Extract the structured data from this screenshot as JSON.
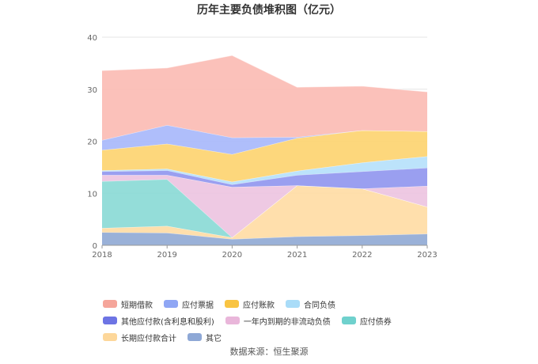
{
  "chart_data": {
    "type": "area",
    "stacked": true,
    "title": "历年主要负债堆积图（亿元）",
    "x": [
      "2018",
      "2019",
      "2020",
      "2021",
      "2022",
      "2023"
    ],
    "ylim": [
      0,
      40
    ],
    "yticks": [
      0,
      10,
      20,
      30,
      40
    ],
    "grid": true,
    "legend_position": "bottom",
    "series": [
      {
        "name": "其它",
        "color": "#8fa9d4",
        "values": [
          2.5,
          2.4,
          1.2,
          1.7,
          1.9,
          2.2
        ]
      },
      {
        "name": "长期应付款合计",
        "color": "#ffdca3",
        "values": [
          0.8,
          1.3,
          0.3,
          9.8,
          9.0,
          5.2
        ]
      },
      {
        "name": "应付债券",
        "color": "#88d9d5",
        "values": [
          9.0,
          9.0,
          0.0,
          0.0,
          0.0,
          0.0
        ]
      },
      {
        "name": "一年内到期的非流动负债",
        "color": "#ecc3e0",
        "values": [
          1.2,
          0.8,
          9.7,
          0.0,
          0.0,
          4.0
        ]
      },
      {
        "name": "其他应付款(含利息和股利)",
        "color": "#8f95ee",
        "values": [
          0.7,
          0.9,
          0.5,
          2.0,
          3.3,
          3.5
        ]
      },
      {
        "name": "合同负债",
        "color": "#b5e0fb",
        "values": [
          0.2,
          0.3,
          0.5,
          0.8,
          1.7,
          2.2
        ]
      },
      {
        "name": "应付账款",
        "color": "#fdd36e",
        "values": [
          3.9,
          4.8,
          5.3,
          6.3,
          6.2,
          4.8
        ]
      },
      {
        "name": "应付票据",
        "color": "#a6b7fb",
        "values": [
          1.9,
          3.6,
          3.2,
          0.2,
          0.0,
          0.0
        ]
      },
      {
        "name": "短期借款",
        "color": "#fbbab3",
        "values": [
          13.4,
          11.0,
          15.8,
          9.6,
          8.5,
          7.6
        ]
      }
    ]
  },
  "legend": [
    {
      "name": "短期借款",
      "color": "#f5a59a"
    },
    {
      "name": "应付票据",
      "color": "#8fa6f4"
    },
    {
      "name": "应付账款",
      "color": "#f9c442"
    },
    {
      "name": "合同负债",
      "color": "#a9dcf8"
    },
    {
      "name": "其他应付款(含利息和股利)",
      "color": "#6d74e4"
    },
    {
      "name": "一年内到期的非流动负债",
      "color": "#e9b6da"
    },
    {
      "name": "应付债券",
      "color": "#6fd1cd"
    },
    {
      "name": "长期应付款合计",
      "color": "#fdd79a"
    },
    {
      "name": "其它",
      "color": "#8ea8d6"
    }
  ],
  "source": "数据来源：恒生聚源"
}
